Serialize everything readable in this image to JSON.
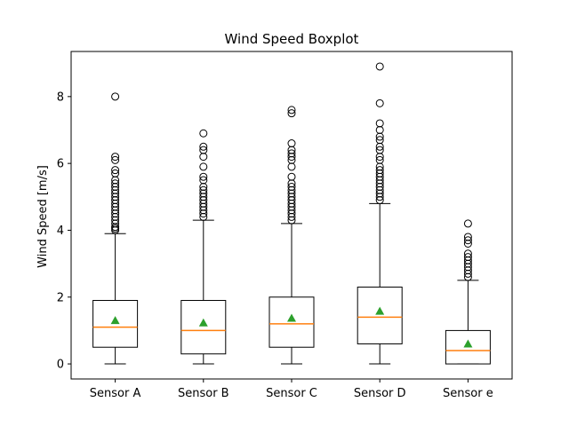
{
  "chart_data": {
    "type": "boxplot",
    "title": "Wind Speed Boxplot",
    "xlabel": "",
    "ylabel": "Wind Speed [m/s]",
    "ylim": [
      -0.45,
      9.35
    ],
    "yticks": [
      0,
      2,
      4,
      6,
      8
    ],
    "grid": false,
    "legend": "none",
    "colors": {
      "box": "#000000",
      "median": "#ff7f0e",
      "mean": "#2ca02c",
      "flier": "#000000"
    },
    "categories": [
      "Sensor A",
      "Sensor B",
      "Sensor C",
      "Sensor D",
      "Sensor e"
    ],
    "boxes": [
      {
        "label": "Sensor A",
        "whisker_low": 0.0,
        "q1": 0.5,
        "median": 1.1,
        "q3": 1.9,
        "whisker_high": 3.9,
        "mean": 1.3,
        "outliers": [
          4.0,
          4.05,
          4.1,
          4.2,
          4.3,
          4.4,
          4.5,
          4.6,
          4.7,
          4.8,
          4.9,
          5.0,
          5.1,
          5.2,
          5.3,
          5.4,
          5.5,
          5.7,
          5.8,
          6.1,
          6.2,
          8.0
        ]
      },
      {
        "label": "Sensor B",
        "whisker_low": 0.0,
        "q1": 0.3,
        "median": 1.0,
        "q3": 1.9,
        "whisker_high": 4.3,
        "mean": 1.23,
        "outliers": [
          4.4,
          4.5,
          4.6,
          4.7,
          4.8,
          4.9,
          5.0,
          5.1,
          5.2,
          5.3,
          5.5,
          5.6,
          5.9,
          6.2,
          6.4,
          6.5,
          6.9
        ]
      },
      {
        "label": "Sensor C",
        "whisker_low": 0.0,
        "q1": 0.5,
        "median": 1.2,
        "q3": 2.0,
        "whisker_high": 4.2,
        "mean": 1.37,
        "outliers": [
          4.3,
          4.4,
          4.5,
          4.6,
          4.7,
          4.8,
          4.9,
          5.0,
          5.1,
          5.2,
          5.3,
          5.4,
          5.6,
          5.9,
          6.1,
          6.2,
          6.3,
          6.4,
          6.6,
          7.5,
          7.6
        ]
      },
      {
        "label": "Sensor D",
        "whisker_low": 0.0,
        "q1": 0.6,
        "median": 1.4,
        "q3": 2.3,
        "whisker_high": 4.8,
        "mean": 1.58,
        "outliers": [
          4.9,
          5.0,
          5.1,
          5.2,
          5.3,
          5.4,
          5.5,
          5.6,
          5.7,
          5.8,
          5.9,
          6.1,
          6.2,
          6.4,
          6.5,
          6.7,
          6.8,
          7.0,
          7.2,
          7.8,
          8.9
        ]
      },
      {
        "label": "Sensor e",
        "whisker_low": 0.0,
        "q1": 0.0,
        "median": 0.4,
        "q3": 1.0,
        "whisker_high": 2.5,
        "mean": 0.6,
        "outliers": [
          2.6,
          2.7,
          2.8,
          2.9,
          3.0,
          3.1,
          3.2,
          3.3,
          3.6,
          3.7,
          3.8,
          4.2
        ]
      }
    ]
  }
}
